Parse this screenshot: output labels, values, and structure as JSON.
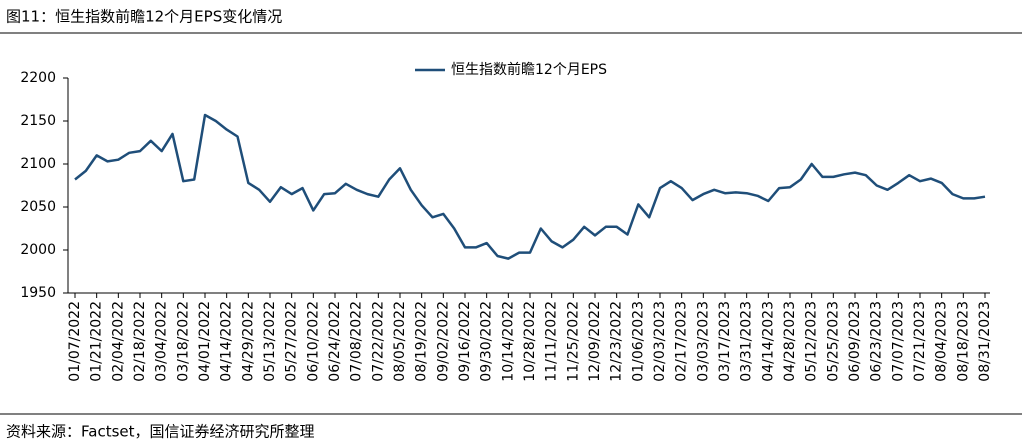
{
  "header": "图11：恒生指数前瞻12个月EPS变化情况",
  "footer": "资料来源：Factset，国信证券经济研究所整理",
  "chart_data": {
    "type": "line",
    "categories": [
      "01/07/2022",
      null,
      "01/21/2022",
      null,
      "02/04/2022",
      null,
      "02/18/2022",
      null,
      "03/04/2022",
      null,
      "03/18/2022",
      null,
      "04/01/2022",
      null,
      "04/14/2022",
      null,
      "04/29/2022",
      null,
      "05/13/2022",
      null,
      "05/27/2022",
      null,
      "06/10/2022",
      null,
      "06/24/2022",
      null,
      "07/08/2022",
      null,
      "07/22/2022",
      null,
      "08/05/2022",
      null,
      "08/19/2022",
      null,
      "09/02/2022",
      null,
      "09/16/2022",
      null,
      "09/30/2022",
      null,
      "10/14/2022",
      null,
      "10/28/2022",
      null,
      "11/11/2022",
      null,
      "11/25/2022",
      null,
      "12/09/2022",
      null,
      "12/23/2022",
      null,
      "01/06/2023",
      null,
      "02/03/2023",
      null,
      "02/17/2023",
      null,
      "03/03/2023",
      null,
      "03/17/2023",
      null,
      "03/31/2023",
      null,
      "04/14/2023",
      null,
      "04/28/2023",
      null,
      "05/12/2023",
      null,
      "05/25/2023",
      null,
      "06/09/2023",
      null,
      "06/23/2023",
      null,
      "07/07/2023",
      null,
      "07/21/2023",
      null,
      "08/04/2023",
      null,
      "08/18/2023",
      null,
      "08/31/2023"
    ],
    "series": [
      {
        "name": "恒生指数前瞻12个月EPS",
        "color": "#1f4e79",
        "values": [
          2082,
          2092,
          2110,
          2103,
          2105,
          2113,
          2115,
          2127,
          2115,
          2135,
          2080,
          2082,
          2157,
          2150,
          2140,
          2132,
          2078,
          2070,
          2056,
          2073,
          2065,
          2072,
          2046,
          2065,
          2066,
          2077,
          2070,
          2065,
          2062,
          2082,
          2095,
          2070,
          2052,
          2038,
          2042,
          2025,
          2003,
          2003,
          2008,
          1993,
          1990,
          1997,
          1997,
          2025,
          2010,
          2003,
          2012,
          2027,
          2017,
          2027,
          2027,
          2018,
          2053,
          2038,
          2072,
          2080,
          2072,
          2058,
          2065,
          2070,
          2066,
          2067,
          2066,
          2063,
          2057,
          2072,
          2073,
          2082,
          2100,
          2085,
          2085,
          2088,
          2090,
          2087,
          2075,
          2070,
          2078,
          2087,
          2080,
          2083,
          2078,
          2065,
          2060,
          2060,
          2062
        ]
      }
    ],
    "ylim": [
      1950,
      2200
    ],
    "yticks": [
      1950,
      2000,
      2050,
      2100,
      2150,
      2200
    ],
    "legend": "top"
  }
}
